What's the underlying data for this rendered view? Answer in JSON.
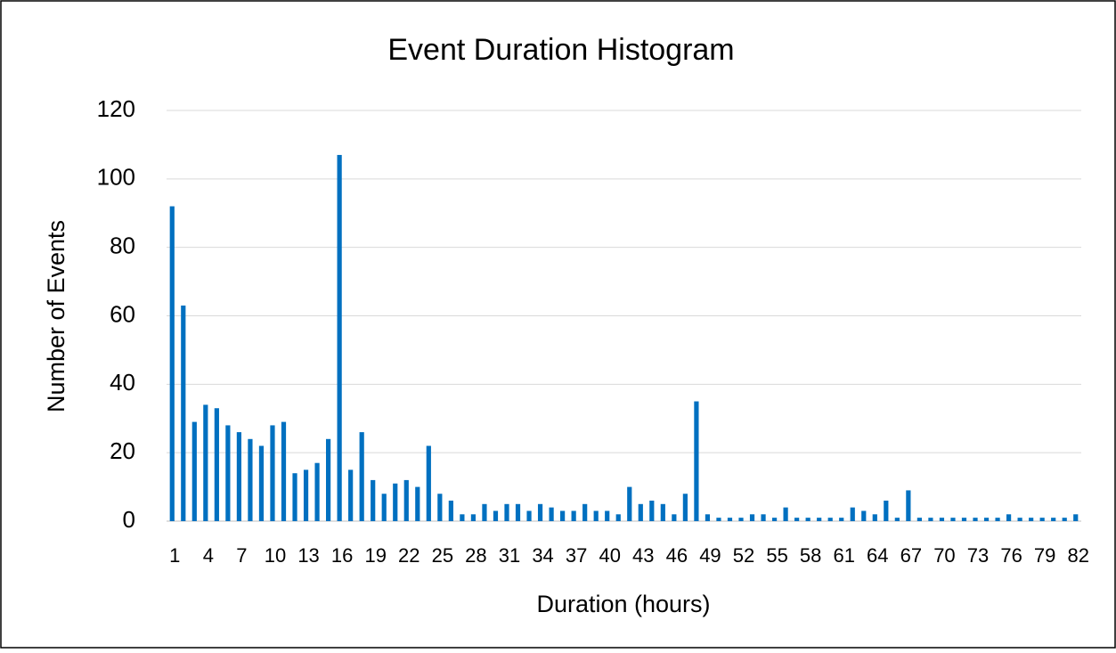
{
  "chart_data": {
    "type": "bar",
    "title": "Event Duration Histogram",
    "x_label": "Duration (hours)",
    "y_label": "Number of Events",
    "categories": [
      1,
      null,
      null,
      4,
      null,
      null,
      7,
      null,
      null,
      10,
      null,
      null,
      13,
      null,
      null,
      16,
      null,
      null,
      19,
      null,
      null,
      22,
      null,
      null,
      25,
      null,
      null,
      28,
      null,
      null,
      31,
      null,
      null,
      34,
      null,
      null,
      37,
      null,
      null,
      40,
      null,
      null,
      43,
      null,
      null,
      46,
      null,
      null,
      49,
      null,
      null,
      52,
      null,
      null,
      55,
      null,
      null,
      58,
      null,
      null,
      61,
      null,
      null,
      64,
      null,
      null,
      67,
      null,
      null,
      70,
      null,
      null,
      73,
      null,
      null,
      76,
      null,
      null,
      79,
      null,
      null,
      82
    ],
    "values": [
      92,
      63,
      29,
      34,
      33,
      28,
      26,
      24,
      22,
      28,
      29,
      14,
      15,
      17,
      24,
      107,
      15,
      26,
      12,
      8,
      11,
      12,
      10,
      22,
      8,
      6,
      2,
      2,
      5,
      3,
      5,
      5,
      3,
      5,
      4,
      3,
      3,
      5,
      3,
      3,
      2,
      10,
      5,
      6,
      5,
      2,
      8,
      35,
      2,
      1,
      1,
      1,
      2,
      2,
      1,
      4,
      1,
      1,
      1,
      1,
      1,
      4,
      3,
      2,
      6,
      1,
      9,
      1,
      1,
      1,
      1,
      1,
      1,
      1,
      1,
      2,
      1,
      1,
      1,
      1,
      1,
      2
    ],
    "color": "#0070c0",
    "ylim": [
      0,
      120
    ],
    "yticks": [
      0,
      20,
      40,
      60,
      80,
      100,
      120
    ],
    "grid": true
  }
}
